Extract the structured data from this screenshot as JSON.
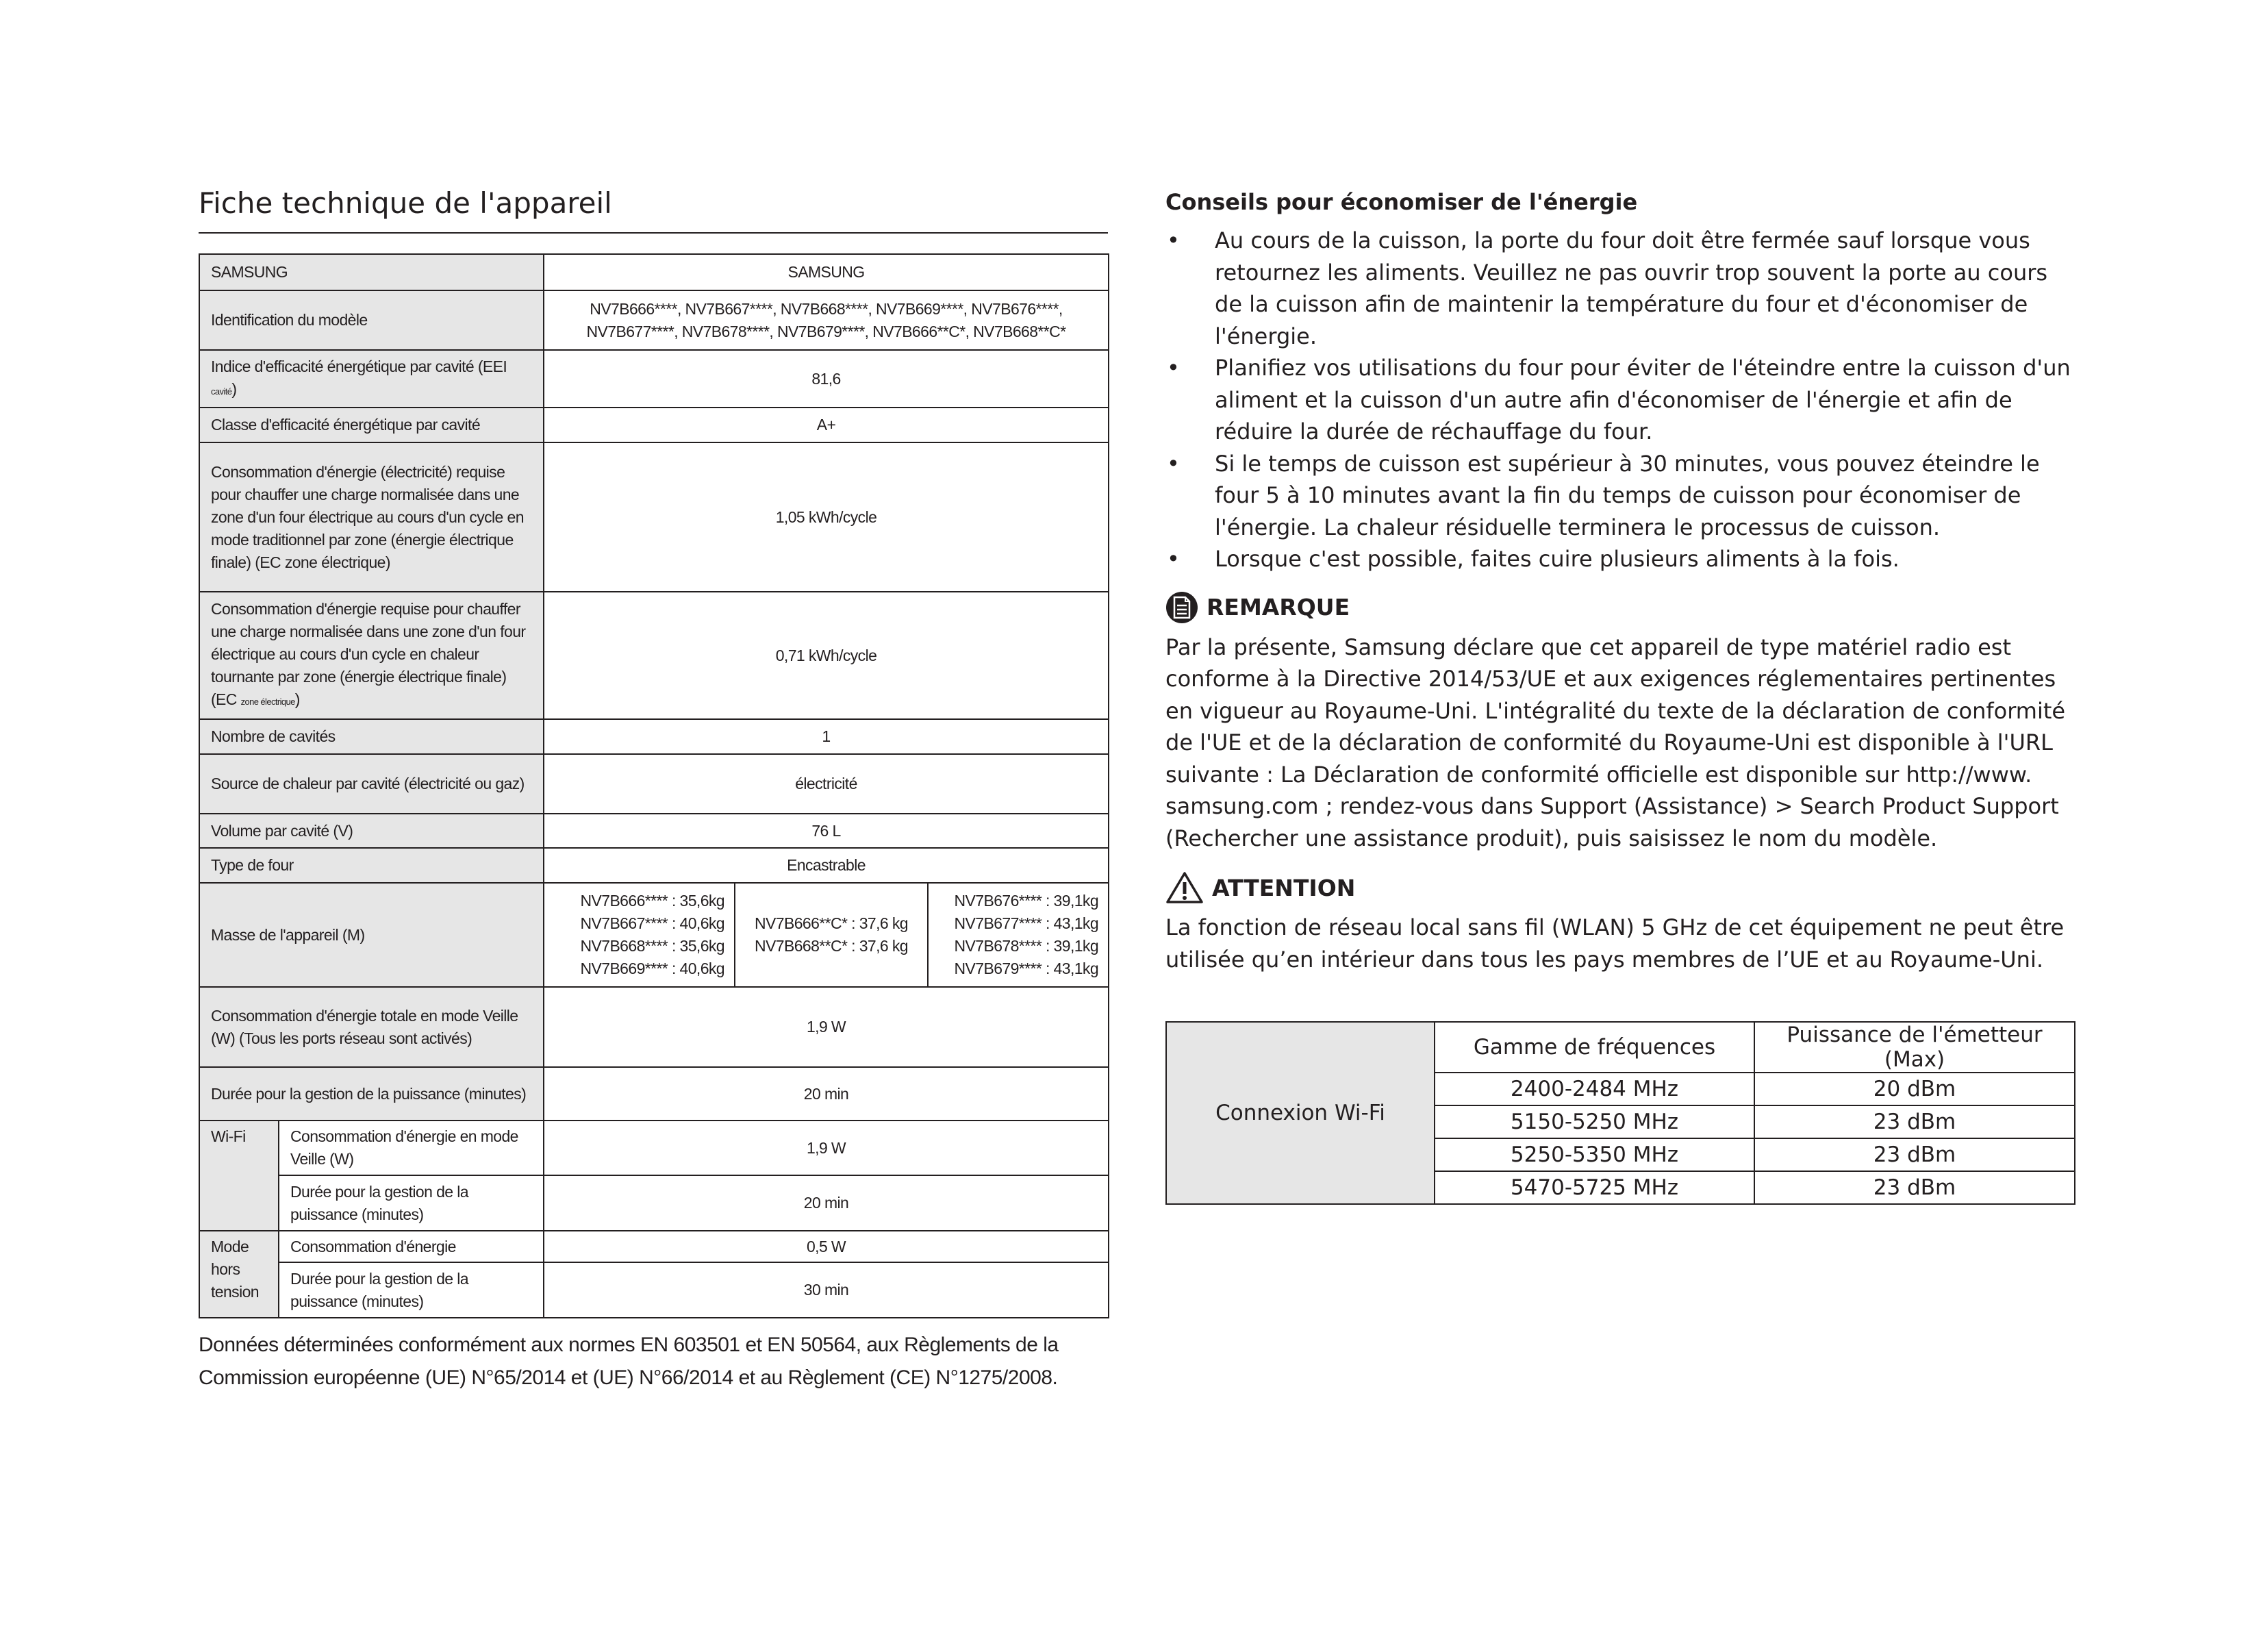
{
  "title": "Fiche technique de l'appareil",
  "spec": {
    "brand_label": "SAMSUNG",
    "brand_value": "SAMSUNG",
    "model_label": "Identification du modèle",
    "model_value_1": "NV7B666****, NV7B667****, NV7B668****, NV7B669****, NV7B676****,",
    "model_value_2": "NV7B677****, NV7B678****, NV7B679****, NV7B666**C*, NV7B668**C*",
    "eei_label": "Indice d'efficacité énergétique par cavité (EEI",
    "eei_sub": "cavité",
    "eei_value": "81,6",
    "class_label": "Classe d'efficacité énergétique par cavité",
    "class_value": "A+",
    "ec_trad_label": "Consommation d'énergie (électricité) requise pour chauffer une charge normalisée dans une zone d'un four électrique au cours d'un cycle en mode traditionnel par zone (énergie électrique finale) (EC zone électrique)",
    "ec_trad_value": "1,05 kWh/cycle",
    "ec_fan_label": "Consommation d'énergie requise pour chauffer une charge normalisée dans une zone d'un four électrique au cours d'un cycle en chaleur tournante par zone (énergie électrique finale) (EC",
    "ec_fan_sub": "zone électrique",
    "ec_fan_value": "0,71 kWh/cycle",
    "cavities_label": "Nombre de cavités",
    "cavities_value": "1",
    "heat_label": "Source de chaleur par cavité (électricité ou gaz)",
    "heat_value": "électricité",
    "volume_label": "Volume par cavité (V)",
    "volume_value": "76 L",
    "type_label": "Type de four",
    "type_value": "Encastrable",
    "mass_label": "Masse de l'appareil (M)",
    "mass_col1": [
      "NV7B666**** : 35,6kg",
      "NV7B667**** : 40,6kg",
      "NV7B668**** : 35,6kg",
      "NV7B669**** : 40,6kg"
    ],
    "mass_col2": [
      "NV7B666**C* : 37,6 kg",
      "NV7B668**C* : 37,6 kg"
    ],
    "mass_col3": [
      "NV7B676**** : 39,1kg",
      "NV7B677**** : 43,1kg",
      "NV7B678**** : 39,1kg",
      "NV7B679**** : 43,1kg"
    ],
    "standby_label": "Consommation d'énergie totale en mode Veille (W) (Tous les ports réseau sont activés)",
    "standby_value": "1,9 W",
    "pm_label": "Durée pour la gestion de la puissance (minutes)",
    "pm_value": "20 min",
    "wifi_label": "Wi-Fi",
    "wifi_cons_label": "Consommation d'énergie en mode Veille (W)",
    "wifi_cons_value": "1,9 W",
    "wifi_pm_label": "Durée pour la gestion de la puissance (minutes)",
    "wifi_pm_value": "20 min",
    "off_label": "Mode hors tension",
    "off_cons_label": "Consommation d'énergie",
    "off_cons_value": "0,5 W",
    "off_pm_label": "Durée pour la gestion de la puissance (minutes)",
    "off_pm_value": "30 min"
  },
  "footnote": "Données déterminées conformément aux normes EN 603501 et EN 50564, aux Règlements de la Commission européenne (UE) N°65/2014 et (UE) N°66/2014 et au Règlement (CE) N°1275/2008.",
  "tips": {
    "heading": "Conseils pour économiser de l'énergie",
    "bullet": "•",
    "items": [
      "Au cours de la cuisson, la porte du four doit être fermée sauf lorsque vous retournez les aliments. Veuillez ne pas ouvrir trop souvent la porte au cours de la cuisson afin de maintenir la température du four et d'économiser de l'énergie.",
      "Planifiez vos utilisations du four pour éviter de l'éteindre entre la cuisson d'un aliment et la cuisson d'un autre afin d'économiser de l'énergie et afin de réduire la durée de réchauffage du four.",
      "Si le temps de cuisson est supérieur à 30 minutes, vous pouvez éteindre le four 5 à 10 minutes avant la fin du temps de cuisson pour économiser de l'énergie. La chaleur résiduelle terminera le processus de cuisson.",
      "Lorsque c'est possible, faites cuire plusieurs aliments à la fois."
    ]
  },
  "note": {
    "icon": "note-icon",
    "heading": "REMARQUE",
    "text": "Par la présente, Samsung déclare que cet appareil de type matériel radio est conforme à la Directive 2014/53/UE et aux exigences réglementaires pertinentes en vigueur au Royaume-Uni. L'intégralité du texte de la déclaration de conformité de l'UE et de la déclaration de conformité du Royaume-Uni est disponible à l'URL suivante : La Déclaration de conformité officielle est disponible sur http://www. samsung.com ; rendez-vous dans Support (Assistance) > Search Product Support (Rechercher une assistance produit), puis saisissez le nom du modèle."
  },
  "caution": {
    "icon": "warning-icon",
    "heading": "ATTENTION",
    "text": "La fonction de réseau local sans fil (WLAN) 5 GHz de cet équipement ne peut être utilisée qu’en intérieur dans tous les pays membres de l’UE et au Royaume-Uni."
  },
  "wifi_table": {
    "row_label": "Connexion Wi-Fi",
    "headers": [
      "Gamme de fréquences",
      "Puissance de l'émetteur (Max)"
    ],
    "rows": [
      [
        "2400-2484 MHz",
        "20 dBm"
      ],
      [
        "5150-5250 MHz",
        "23 dBm"
      ],
      [
        "5250-5350 MHz",
        "23 dBm"
      ],
      [
        "5470-5725 MHz",
        "23 dBm"
      ]
    ]
  }
}
